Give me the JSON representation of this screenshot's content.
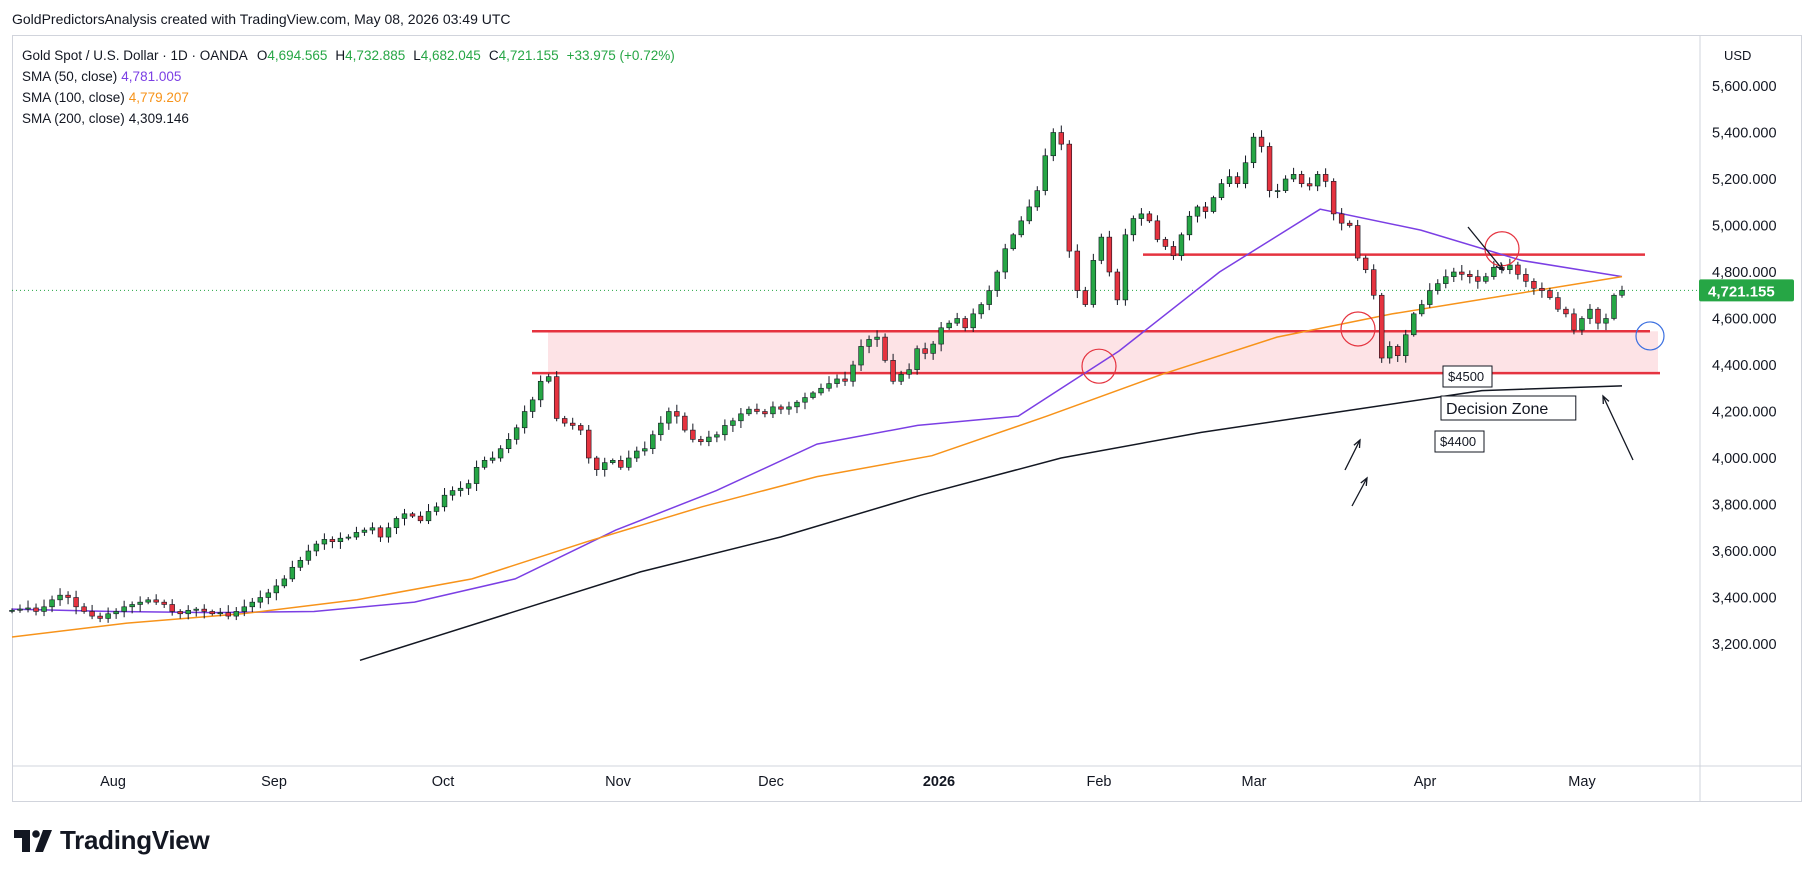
{
  "header": {
    "attribution": "GoldPredictorsAnalysis created with TradingView.com, May 08, 2026 03:49 UTC"
  },
  "legend": {
    "symbol": "Gold Spot / U.S. Dollar · 1D · OANDA",
    "ohlc": [
      {
        "key": "O",
        "value": "4,694.565"
      },
      {
        "key": "H",
        "value": "4,732.885"
      },
      {
        "key": "L",
        "value": "4,682.045"
      },
      {
        "key": "C",
        "value": "4,721.155"
      },
      {
        "key": "",
        "value": "+33.975 (+0.72%)"
      }
    ],
    "sma": [
      {
        "label": "SMA (50, close)",
        "value": "4,781.005",
        "color": "#7b3fe4"
      },
      {
        "label": "SMA (100, close)",
        "value": "4,779.207",
        "color": "#f7931a"
      },
      {
        "label": "SMA (200, close)",
        "value": "4,309.146",
        "color": "#131722"
      }
    ]
  },
  "price_scale": {
    "currency": "USD",
    "last_price": "4,721.155",
    "last_price_color": "#26a645"
  },
  "annotations": {
    "label_4500": "$4500",
    "label_4400": "$4400",
    "decision_zone": "Decision Zone"
  },
  "brand": {
    "name": "TradingView"
  },
  "colors": {
    "up": "#26a645",
    "down": "#e5333f",
    "sma50": "#7b3fe4",
    "sma100": "#f7931a",
    "sma200": "#131722",
    "resistance": "#e5333f",
    "zone_fill": "#fde3e6",
    "circle_blue": "#3b6fe0"
  },
  "chart_data": {
    "type": "candlestick",
    "title": "Gold Spot / U.S. Dollar · 1D · OANDA",
    "x_tick_labels": [
      "Aug",
      "Sep",
      "Oct",
      "Nov",
      "Dec",
      "2026",
      "Feb",
      "Mar",
      "Apr",
      "May"
    ],
    "y_tick_labels": [
      "5,600.000",
      "5,400.000",
      "5,200.000",
      "5,000.000",
      "4,800.000",
      "4,600.000",
      "4,400.000",
      "4,200.000",
      "4,000.000",
      "3,800.000",
      "3,600.000",
      "3,400.000",
      "3,200.000"
    ],
    "y_ticks": [
      5600,
      5400,
      5200,
      5000,
      4800,
      4600,
      4400,
      4200,
      4000,
      3800,
      3600,
      3400,
      3200
    ],
    "ylim": [
      3140,
      5760
    ],
    "grid": false,
    "key_levels": [
      {
        "name": "Resistance",
        "value": 4875
      },
      {
        "name": "Decision Zone top",
        "value": 4545
      },
      {
        "name": "Decision Zone bottom",
        "value": 4365
      }
    ],
    "series": [
      {
        "name": "Gold price (approx. daily closes, Jul 2025 – May 2026)",
        "values": [
          3345,
          3350,
          3355,
          3340,
          3360,
          3390,
          3410,
          3400,
          3360,
          3340,
          3320,
          3310,
          3330,
          3340,
          3360,
          3370,
          3380,
          3390,
          3380,
          3370,
          3340,
          3330,
          3345,
          3350,
          3340,
          3330,
          3335,
          3320,
          3340,
          3360,
          3380,
          3400,
          3420,
          3450,
          3480,
          3530,
          3560,
          3600,
          3630,
          3650,
          3640,
          3655,
          3660,
          3680,
          3690,
          3700,
          3660,
          3700,
          3740,
          3760,
          3750,
          3730,
          3770,
          3790,
          3840,
          3860,
          3870,
          3890,
          3960,
          3990,
          4000,
          4040,
          4080,
          4130,
          4200,
          4250,
          4330,
          4350,
          4170,
          4150,
          4140,
          4120,
          4000,
          3950,
          3980,
          3990,
          3960,
          4000,
          4030,
          4040,
          4100,
          4150,
          4200,
          4180,
          4120,
          4080,
          4070,
          4090,
          4100,
          4140,
          4160,
          4190,
          4210,
          4200,
          4190,
          4220,
          4210,
          4220,
          4240,
          4260,
          4280,
          4300,
          4320,
          4340,
          4330,
          4400,
          4480,
          4510,
          4520,
          4420,
          4330,
          4360,
          4380,
          4470,
          4450,
          4490,
          4560,
          4580,
          4600,
          4560,
          4620,
          4660,
          4720,
          4800,
          4900,
          4960,
          5020,
          5080,
          5150,
          5300,
          5400,
          5350,
          4890,
          4720,
          4660,
          4850,
          4950,
          4800,
          4680,
          4960,
          5030,
          5050,
          5020,
          4940,
          4910,
          4870,
          4960,
          5040,
          5080,
          5060,
          5120,
          5180,
          5210,
          5180,
          5270,
          5380,
          5340,
          5150,
          5150,
          5200,
          5220,
          5180,
          5170,
          5220,
          5190,
          5050,
          5010,
          5000,
          4860,
          4810,
          4700,
          4430,
          4480,
          4440,
          4530,
          4620,
          4660,
          4720,
          4750,
          4780,
          4800,
          4790,
          4780,
          4760,
          4780,
          4820,
          4810,
          4830,
          4790,
          4760,
          4730,
          4720,
          4690,
          4640,
          4620,
          4550,
          4600,
          4640,
          4580,
          4600,
          4700,
          4721
        ]
      },
      {
        "name": "SMA (50, close)",
        "values": [
          3350,
          3340,
          3335,
          3340,
          3380,
          3480,
          3690,
          3860,
          4060,
          4140,
          4180,
          4460,
          4800,
          5070,
          4980,
          4850,
          4780
        ]
      },
      {
        "name": "SMA (100, close)",
        "values": [
          3230,
          3290,
          3330,
          3390,
          3480,
          3640,
          3790,
          3920,
          4010,
          4180,
          4360,
          4520,
          4620,
          4700,
          4780
        ]
      },
      {
        "name": "SMA (200, close)",
        "values": [
          3130,
          3320,
          3510,
          3660,
          3840,
          4000,
          4110,
          4200,
          4290,
          4310
        ]
      }
    ]
  }
}
